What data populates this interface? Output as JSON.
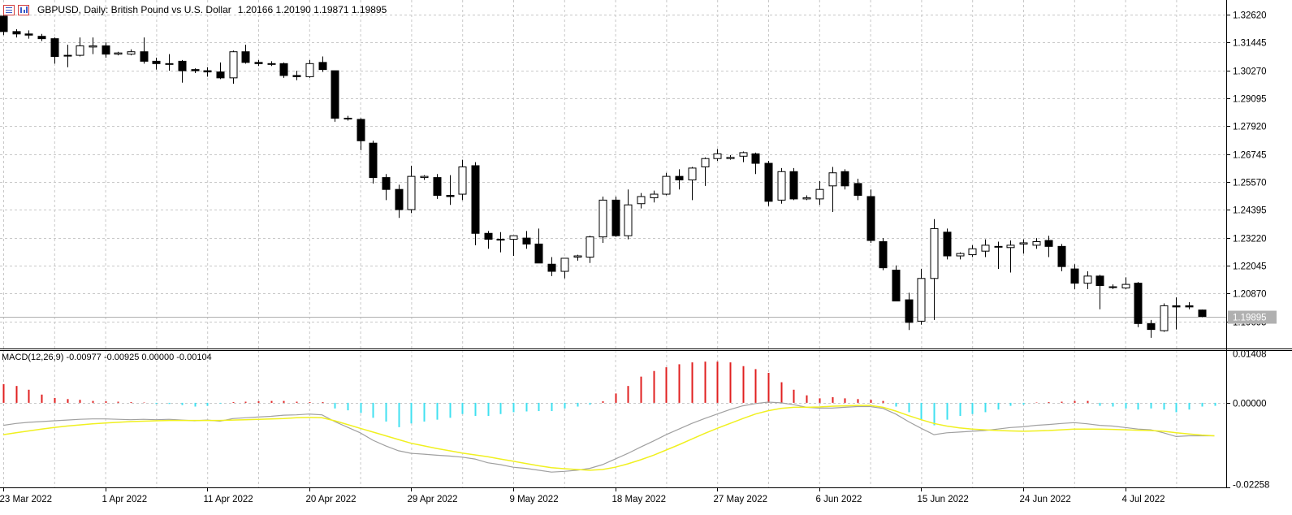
{
  "header": {
    "symbol_title": "GBPUSD, Daily:  British Pound vs U.S. Dollar",
    "ohlc": "1.20166 1.20190 1.19871 1.19895",
    "icons": [
      "ticker-list-icon",
      "chart-type-icon"
    ]
  },
  "indicator": {
    "label": "MACD(12,26,9) -0.00977 -0.00925 0.00000 -0.00104"
  },
  "colors": {
    "up_candle_fill": "#ffffff",
    "down_candle_fill": "#000000",
    "grid": "#c8c8c8",
    "hist_positive": "#e02020",
    "hist_negative": "#40e0f0",
    "macd_line": "#a0a0a0",
    "signal_line": "#f0f020",
    "bid_line": "#b0b0b0"
  },
  "chart_data": {
    "type": "candlestick",
    "price_axis_ticks": [
      "1.32620",
      "1.31445",
      "1.30270",
      "1.29095",
      "1.27920",
      "1.26745",
      "1.25570",
      "1.24395",
      "1.23220",
      "1.22045",
      "1.20870",
      "1.19695"
    ],
    "price_range": [
      1.1855,
      1.3323
    ],
    "current_price_label": "1.19895",
    "current_price": 1.19895,
    "date_labels": [
      "23 Mar 2022",
      "1 Apr 2022",
      "11 Apr 2022",
      "20 Apr 2022",
      "29 Apr 2022",
      "9 May 2022",
      "18 May 2022",
      "27 May 2022",
      "6 Jun 2022",
      "15 Jun 2022",
      "24 Jun 2022",
      "4 Jul 2022"
    ],
    "date_label_bars": [
      0,
      8,
      16,
      24,
      32,
      40,
      48,
      56,
      64,
      72,
      80,
      88
    ],
    "candles": [
      [
        1.3255,
        1.3265,
        1.3175,
        1.319
      ],
      [
        1.319,
        1.32,
        1.3165,
        1.318
      ],
      [
        1.318,
        1.3195,
        1.316,
        1.3175
      ],
      [
        1.317,
        1.318,
        1.315,
        1.316
      ],
      [
        1.316,
        1.3165,
        1.3055,
        1.3085
      ],
      [
        1.309,
        1.3135,
        1.304,
        1.309
      ],
      [
        1.309,
        1.3165,
        1.3085,
        1.313
      ],
      [
        1.3125,
        1.3165,
        1.3095,
        1.313
      ],
      [
        1.313,
        1.3145,
        1.308,
        1.3095
      ],
      [
        1.3095,
        1.3105,
        1.309,
        1.31
      ],
      [
        1.3095,
        1.3115,
        1.309,
        1.3105
      ],
      [
        1.3105,
        1.3165,
        1.3055,
        1.3065
      ],
      [
        1.3065,
        1.308,
        1.303,
        1.3055
      ],
      [
        1.3055,
        1.3095,
        1.3025,
        1.3055
      ],
      [
        1.3065,
        1.307,
        1.2975,
        1.3025
      ],
      [
        1.303,
        1.3035,
        1.3015,
        1.3025
      ],
      [
        1.3025,
        1.304,
        1.3,
        1.302
      ],
      [
        1.302,
        1.306,
        1.299,
        1.2995
      ],
      [
        1.2995,
        1.311,
        1.297,
        1.3105
      ],
      [
        1.3105,
        1.3135,
        1.3055,
        1.306
      ],
      [
        1.306,
        1.307,
        1.3045,
        1.3055
      ],
      [
        1.3055,
        1.3065,
        1.3045,
        1.3055
      ],
      [
        1.3055,
        1.306,
        1.2995,
        1.3005
      ],
      [
        1.3005,
        1.3025,
        1.2985,
        1.3
      ],
      [
        1.3,
        1.307,
        1.2995,
        1.3055
      ],
      [
        1.306,
        1.3085,
        1.302,
        1.303
      ],
      [
        1.3025,
        1.3025,
        1.281,
        1.2825
      ],
      [
        1.2825,
        1.2835,
        1.2815,
        1.2825
      ],
      [
        1.282,
        1.2825,
        1.269,
        1.273
      ],
      [
        1.272,
        1.273,
        1.255,
        1.2575
      ],
      [
        1.2575,
        1.259,
        1.248,
        1.2525
      ],
      [
        1.2525,
        1.2545,
        1.2405,
        1.244
      ],
      [
        1.244,
        1.2625,
        1.2425,
        1.258
      ],
      [
        1.2575,
        1.2585,
        1.2565,
        1.258
      ],
      [
        1.2575,
        1.259,
        1.2485,
        1.25
      ],
      [
        1.25,
        1.2585,
        1.246,
        1.2495
      ],
      [
        1.2505,
        1.265,
        1.248,
        1.262
      ],
      [
        1.2625,
        1.264,
        1.229,
        1.234
      ],
      [
        1.234,
        1.235,
        1.2275,
        1.2315
      ],
      [
        1.2315,
        1.2345,
        1.226,
        1.2315
      ],
      [
        1.2315,
        1.233,
        1.2245,
        1.233
      ],
      [
        1.232,
        1.235,
        1.2275,
        1.2295
      ],
      [
        1.2295,
        1.236,
        1.2215,
        1.2215
      ],
      [
        1.221,
        1.224,
        1.216,
        1.218
      ],
      [
        1.218,
        1.2235,
        1.215,
        1.2235
      ],
      [
        1.224,
        1.225,
        1.2225,
        1.2245
      ],
      [
        1.224,
        1.233,
        1.2215,
        1.2325
      ],
      [
        1.2325,
        1.2495,
        1.23,
        1.248
      ],
      [
        1.248,
        1.2495,
        1.2325,
        1.233
      ],
      [
        1.233,
        1.2525,
        1.2315,
        1.246
      ],
      [
        1.2465,
        1.251,
        1.2445,
        1.2495
      ],
      [
        1.249,
        1.252,
        1.247,
        1.2505
      ],
      [
        1.2505,
        1.2595,
        1.25,
        1.258
      ],
      [
        1.258,
        1.261,
        1.2525,
        1.2565
      ],
      [
        1.2565,
        1.262,
        1.248,
        1.2615
      ],
      [
        1.262,
        1.266,
        1.254,
        1.2655
      ],
      [
        1.2655,
        1.2695,
        1.2645,
        1.2675
      ],
      [
        1.2655,
        1.267,
        1.265,
        1.266
      ],
      [
        1.2665,
        1.2685,
        1.264,
        1.268
      ],
      [
        1.2675,
        1.268,
        1.259,
        1.2635
      ],
      [
        1.2635,
        1.2645,
        1.2455,
        1.2475
      ],
      [
        1.248,
        1.2615,
        1.2465,
        1.26
      ],
      [
        1.26,
        1.2615,
        1.248,
        1.2485
      ],
      [
        1.2485,
        1.25,
        1.248,
        1.249
      ],
      [
        1.2485,
        1.256,
        1.246,
        1.2525
      ],
      [
        1.254,
        1.262,
        1.243,
        1.2595
      ],
      [
        1.26,
        1.261,
        1.2525,
        1.254
      ],
      [
        1.255,
        1.257,
        1.248,
        1.25
      ],
      [
        1.2495,
        1.2525,
        1.23,
        1.231
      ],
      [
        1.2305,
        1.232,
        1.2185,
        1.2195
      ],
      [
        1.2185,
        1.2205,
        1.206,
        1.2055
      ],
      [
        1.206,
        1.209,
        1.1933,
        1.1965
      ],
      [
        1.197,
        1.219,
        1.1955,
        1.215
      ],
      [
        1.215,
        1.24,
        1.1975,
        1.236
      ],
      [
        1.2345,
        1.236,
        1.223,
        1.2245
      ],
      [
        1.2245,
        1.226,
        1.223,
        1.2255
      ],
      [
        1.225,
        1.229,
        1.224,
        1.2275
      ],
      [
        1.2265,
        1.2315,
        1.224,
        1.229
      ],
      [
        1.2285,
        1.2305,
        1.219,
        1.2285
      ],
      [
        1.228,
        1.231,
        1.2175,
        1.229
      ],
      [
        1.2295,
        1.2315,
        1.2255,
        1.23
      ],
      [
        1.229,
        1.232,
        1.2275,
        1.2305
      ],
      [
        1.231,
        1.233,
        1.224,
        1.2285
      ],
      [
        1.2285,
        1.2295,
        1.218,
        1.22
      ],
      [
        1.219,
        1.221,
        1.2105,
        1.213
      ],
      [
        1.213,
        1.218,
        1.2105,
        1.216
      ],
      [
        1.216,
        1.2165,
        1.202,
        1.212
      ],
      [
        1.2115,
        1.2125,
        1.2105,
        1.2115
      ],
      [
        1.211,
        1.2155,
        1.2105,
        1.2125
      ],
      [
        1.213,
        1.2135,
        1.1945,
        1.196
      ],
      [
        1.196,
        1.1975,
        1.19,
        1.1935
      ],
      [
        1.193,
        1.2045,
        1.1925,
        1.2035
      ],
      [
        1.2035,
        1.207,
        1.1935,
        1.203
      ],
      [
        1.2035,
        1.205,
        1.202,
        1.203
      ],
      [
        1.2017,
        1.2019,
        1.1987,
        1.199
      ]
    ],
    "macd_axis_ticks": [
      "0.01408",
      "0.00000",
      "-0.02258"
    ],
    "macd_range": [
      -0.02258,
      0.01408
    ],
    "macd_histogram": [
      0.005,
      0.0045,
      0.0035,
      0.0022,
      0.0013,
      0.001,
      0.0008,
      0.0005,
      0.0004,
      0.0003,
      0.0002,
      0.0001,
      -0.0003,
      -0.0003,
      -0.0006,
      -0.001,
      -0.0008,
      -0.0002,
      0.0002,
      0.0003,
      0.0004,
      0.0005,
      0.0005,
      0.0003,
      0.0002,
      0.0002,
      -0.0015,
      -0.002,
      -0.0027,
      -0.004,
      -0.005,
      -0.0065,
      -0.0055,
      -0.005,
      -0.0045,
      -0.004,
      -0.003,
      -0.0035,
      -0.0035,
      -0.003,
      -0.0025,
      -0.0023,
      -0.0022,
      -0.0022,
      -0.0015,
      -0.001,
      -0.0005,
      0.0004,
      0.0025,
      0.0045,
      0.007,
      0.0085,
      0.0095,
      0.0103,
      0.0108,
      0.011,
      0.011,
      0.0108,
      0.0098,
      0.009,
      0.008,
      0.0055,
      0.0035,
      0.002,
      0.0012,
      0.0015,
      0.0012,
      0.001,
      0.0008,
      0.0005,
      -0.001,
      -0.0025,
      -0.0045,
      -0.006,
      -0.0045,
      -0.0035,
      -0.003,
      -0.0025,
      -0.0018,
      -0.0008,
      -0.0005,
      0.0001,
      0.0002,
      0.0003,
      0.0005,
      0.0005,
      -0.0008,
      -0.001,
      -0.0015,
      -0.0018,
      -0.0015,
      -0.0018,
      -0.0025,
      -0.0018,
      -0.001,
      -0.0008
    ],
    "macd_line": [
      -0.006,
      -0.0055,
      -0.0052,
      -0.005,
      -0.0048,
      -0.0046,
      -0.0044,
      -0.0043,
      -0.0043,
      -0.0044,
      -0.0045,
      -0.0044,
      -0.0045,
      -0.0044,
      -0.0046,
      -0.0048,
      -0.0046,
      -0.0049,
      -0.0042,
      -0.004,
      -0.0038,
      -0.0036,
      -0.0033,
      -0.0032,
      -0.003,
      -0.0032,
      -0.005,
      -0.0065,
      -0.008,
      -0.01,
      -0.0115,
      -0.0128,
      -0.0135,
      -0.0137,
      -0.014,
      -0.0142,
      -0.0145,
      -0.015,
      -0.016,
      -0.0165,
      -0.0172,
      -0.0175,
      -0.018,
      -0.0185,
      -0.0183,
      -0.018,
      -0.0175,
      -0.0165,
      -0.015,
      -0.0135,
      -0.0118,
      -0.0102,
      -0.0085,
      -0.007,
      -0.0055,
      -0.0042,
      -0.003,
      -0.0018,
      -0.0008,
      -0.0002,
      0.0002,
      0.0,
      -0.0005,
      -0.0012,
      -0.0014,
      -0.0014,
      -0.0012,
      -0.001,
      -0.001,
      -0.0015,
      -0.003,
      -0.005,
      -0.0068,
      -0.0085,
      -0.008,
      -0.0078,
      -0.0076,
      -0.0074,
      -0.007,
      -0.0066,
      -0.0064,
      -0.006,
      -0.0058,
      -0.0055,
      -0.0053,
      -0.0056,
      -0.006,
      -0.0062,
      -0.0066,
      -0.007,
      -0.0072,
      -0.008,
      -0.009,
      -0.0088,
      -0.0088,
      -0.0088
    ],
    "signal_line": [
      -0.0085,
      -0.008,
      -0.0075,
      -0.007,
      -0.0066,
      -0.0062,
      -0.0059,
      -0.0056,
      -0.0054,
      -0.0052,
      -0.005,
      -0.0049,
      -0.0048,
      -0.0047,
      -0.0047,
      -0.0047,
      -0.0047,
      -0.0047,
      -0.0046,
      -0.0045,
      -0.0044,
      -0.0043,
      -0.0042,
      -0.004,
      -0.0039,
      -0.004,
      -0.0048,
      -0.0058,
      -0.0068,
      -0.0078,
      -0.0088,
      -0.0098,
      -0.0108,
      -0.0115,
      -0.0122,
      -0.0128,
      -0.0134,
      -0.0139,
      -0.0144,
      -0.015,
      -0.0156,
      -0.0162,
      -0.0168,
      -0.0173,
      -0.0176,
      -0.0178,
      -0.018,
      -0.0178,
      -0.0172,
      -0.0163,
      -0.0152,
      -0.014,
      -0.0126,
      -0.0112,
      -0.0097,
      -0.0082,
      -0.0068,
      -0.0055,
      -0.0042,
      -0.003,
      -0.0021,
      -0.0015,
      -0.0012,
      -0.0012,
      -0.0011,
      -0.0009,
      -0.0008,
      -0.0007,
      -0.0007,
      -0.0012,
      -0.0022,
      -0.0034,
      -0.0045,
      -0.0055,
      -0.0062,
      -0.0067,
      -0.007,
      -0.0072,
      -0.0074,
      -0.0075,
      -0.0076,
      -0.0075,
      -0.0074,
      -0.0072,
      -0.007,
      -0.007,
      -0.007,
      -0.0071,
      -0.0072,
      -0.0073,
      -0.0074,
      -0.0076,
      -0.008,
      -0.0083,
      -0.0086,
      -0.0088
    ]
  }
}
